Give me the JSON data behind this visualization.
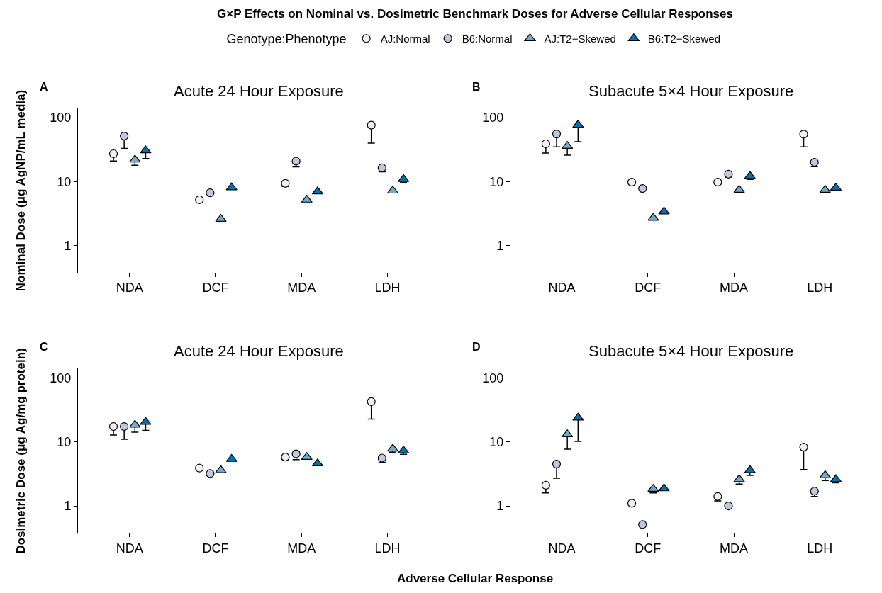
{
  "chart_data": [
    {
      "type": "scatter",
      "title": "Acute 24 Hour Exposure",
      "ylabel": "Nominal Dose (μg AgNP/mL media)",
      "legend_title": "Genotype:Phenotype",
      "legend": "top",
      "log": true,
      "grid": false,
      "annotations": [
        "A",
        "G×P Effects on Nominal vs. Dosimetric Benchmark Doses for Adverse Cellular Responses"
      ],
      "categories": [
        "NDA",
        "DCF",
        "MDA",
        "LDH"
      ],
      "ylim": [
        0.38,
        140
      ],
      "yticks": [
        1,
        10,
        100
      ],
      "series": [
        {
          "name": "AJ:Normal",
          "color": "#f1eef6",
          "marker": "circle",
          "values": [
            27.3,
            5.2,
            9.4,
            76.5
          ],
          "errors": [
            [
              21,
              27.3
            ],
            null,
            [
              8.4,
              9.4
            ],
            [
              40,
              76.5
            ]
          ]
        },
        {
          "name": "B6:Normal",
          "color": "#bdc9e1",
          "marker": "circle",
          "values": [
            51.6,
            6.7,
            20.9,
            16.4
          ],
          "errors": [
            [
              33,
              51.6
            ],
            null,
            [
              17,
              20.9
            ],
            [
              14.2,
              16.4
            ]
          ]
        },
        {
          "name": "AJ:T2−Skewed",
          "color": "#74a9cf",
          "marker": "triangle",
          "values": [
            22,
            2.6,
            5.2,
            7.2
          ],
          "errors": [
            [
              18,
              22
            ],
            null,
            null,
            null
          ]
        },
        {
          "name": "B6:T2−Skewed",
          "color": "#0570b0",
          "marker": "triangle",
          "values": [
            30.7,
            8.1,
            7.0,
            10.9
          ],
          "errors": [
            [
              23,
              30.7
            ],
            null,
            null,
            [
              9.7,
              10.9
            ]
          ]
        }
      ]
    },
    {
      "type": "scatter",
      "title": "Subacute 5×4 Hour Exposure",
      "log": true,
      "grid": false,
      "annotations": [
        "B"
      ],
      "categories": [
        "NDA",
        "DCF",
        "MDA",
        "LDH"
      ],
      "ylim": [
        0.38,
        140
      ],
      "yticks": [
        1,
        10,
        100
      ],
      "series": [
        {
          "color": "#f1eef6",
          "marker": "circle",
          "values": [
            39,
            9.8,
            9.8,
            55.2
          ],
          "errors": [
            [
              28,
              39
            ],
            null,
            null,
            [
              35,
              55.2
            ]
          ]
        },
        {
          "color": "#bdc9e1",
          "marker": "circle",
          "values": [
            55.6,
            7.8,
            13.1,
            20.1
          ],
          "errors": [
            [
              35,
              55.6
            ],
            null,
            [
              11.8,
              13.1
            ],
            [
              17.1,
              20.1
            ]
          ]
        },
        {
          "color": "#74a9cf",
          "marker": "triangle",
          "values": [
            36,
            2.7,
            7.4,
            7.4
          ],
          "errors": [
            [
              26,
              36
            ],
            null,
            null,
            null
          ]
        },
        {
          "color": "#0570b0",
          "marker": "triangle",
          "values": [
            77,
            3.4,
            12.2,
            8.0
          ],
          "errors": [
            [
              42,
              77
            ],
            null,
            [
              10.8,
              12.2
            ],
            null
          ]
        }
      ]
    },
    {
      "type": "scatter",
      "title": "Acute 24 Hour Exposure",
      "ylabel": "Dosimetric Dose (μg Ag/mg protein)",
      "xlabel": "Adverse Cellular Response",
      "log": true,
      "grid": false,
      "annotations": [
        "C"
      ],
      "categories": [
        "NDA",
        "DCF",
        "MDA",
        "LDH"
      ],
      "ylim": [
        0.38,
        140
      ],
      "yticks": [
        1,
        10,
        100
      ],
      "series": [
        {
          "color": "#f1eef6",
          "marker": "circle",
          "values": [
            17.4,
            3.9,
            5.8,
            42.7
          ],
          "errors": [
            [
              12.8,
              17.4
            ],
            null,
            [
              5.3,
              5.8
            ],
            [
              22.8,
              42.7
            ]
          ]
        },
        {
          "color": "#bdc9e1",
          "marker": "circle",
          "values": [
            17.4,
            3.2,
            6.5,
            5.6
          ],
          "errors": [
            [
              11,
              17.4
            ],
            null,
            [
              5.3,
              6.5
            ],
            [
              4.8,
              5.6
            ]
          ]
        },
        {
          "color": "#74a9cf",
          "marker": "triangle",
          "values": [
            18.5,
            3.6,
            5.8,
            7.8
          ],
          "errors": [
            [
              14.2,
              18.5
            ],
            null,
            null,
            [
              6.9,
              7.8
            ]
          ]
        },
        {
          "color": "#0570b0",
          "marker": "triangle",
          "values": [
            20.5,
            5.4,
            4.6,
            7.3
          ],
          "errors": [
            [
              15.1,
              20.5
            ],
            null,
            null,
            [
              6.4,
              7.3
            ]
          ]
        }
      ]
    },
    {
      "type": "scatter",
      "title": "Subacute 5×4 Hour Exposure",
      "log": true,
      "grid": false,
      "annotations": [
        "D"
      ],
      "categories": [
        "NDA",
        "DCF",
        "MDA",
        "LDH"
      ],
      "ylim": [
        0.38,
        140
      ],
      "yticks": [
        1,
        10,
        100
      ],
      "series": [
        {
          "color": "#f1eef6",
          "marker": "circle",
          "values": [
            2.1,
            1.1,
            1.4,
            8.3
          ],
          "errors": [
            [
              1.6,
              2.1
            ],
            null,
            [
              1.2,
              1.4
            ],
            [
              3.7,
              8.3
            ]
          ]
        },
        {
          "color": "#bdc9e1",
          "marker": "circle",
          "values": [
            4.5,
            0.51,
            1.0,
            1.7
          ],
          "errors": [
            [
              2.7,
              4.5
            ],
            null,
            null,
            [
              1.4,
              1.7
            ]
          ]
        },
        {
          "color": "#74a9cf",
          "marker": "triangle",
          "values": [
            13.1,
            1.84,
            2.6,
            3.0
          ],
          "errors": [
            [
              7.7,
              13.1
            ],
            [
              1.6,
              1.84
            ],
            [
              2.2,
              2.6
            ],
            [
              2.5,
              3.0
            ]
          ]
        },
        {
          "color": "#0570b0",
          "marker": "triangle",
          "values": [
            23.9,
            1.87,
            3.6,
            2.6
          ],
          "errors": [
            [
              10.2,
              23.9
            ],
            null,
            [
              3.0,
              3.6
            ],
            [
              2.3,
              2.6
            ]
          ]
        }
      ]
    }
  ]
}
